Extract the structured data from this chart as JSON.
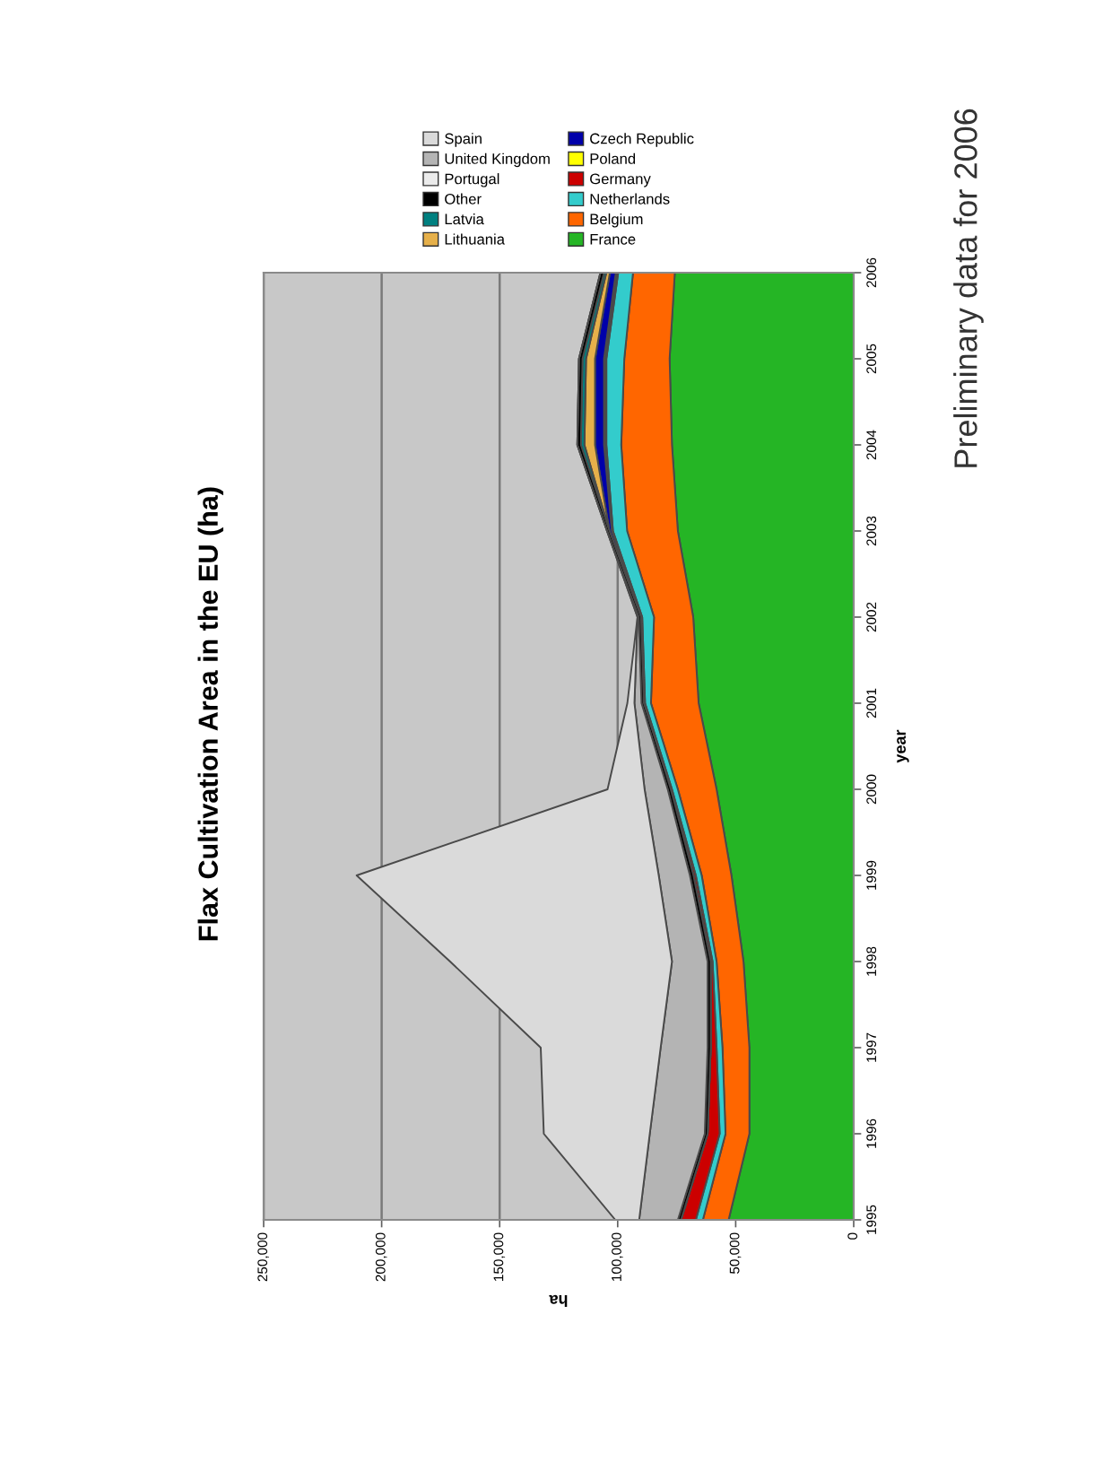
{
  "chart_data": {
    "type": "area",
    "stacked": true,
    "orientation": "horizontal",
    "title": "Flax Cultivation Area in the EU (ha)",
    "xlabel": "ha",
    "ylabel": "year",
    "x": [
      1995,
      1996,
      1997,
      1998,
      1999,
      2000,
      2001,
      2002,
      2003,
      2004,
      2005,
      2006
    ],
    "xlim": [
      250000,
      0
    ],
    "xticks": [
      {
        "value": 250000,
        "label": "250,000"
      },
      {
        "value": 200000,
        "label": "200,000"
      },
      {
        "value": 150000,
        "label": "150,000"
      },
      {
        "value": 100000,
        "label": "100,000"
      },
      {
        "value": 50000,
        "label": "50,000"
      },
      0
    ],
    "ylim": [
      1995,
      2006
    ],
    "yticks": [
      1995,
      1996,
      1997,
      1998,
      1999,
      2000,
      2001,
      2002,
      2003,
      2004,
      2005,
      2006
    ],
    "grid": "x",
    "legend": "top",
    "series": [
      {
        "name": "France",
        "color": "#25b525",
        "values": [
          53000,
          44200,
          44200,
          46700,
          51800,
          58100,
          65700,
          68000,
          74500,
          77000,
          78000,
          75800
        ]
      },
      {
        "name": "Belgium",
        "color": "#ff6600",
        "values": [
          10900,
          10100,
          11400,
          11400,
          12600,
          16400,
          20200,
          16600,
          21500,
          21500,
          19200,
          17700
        ]
      },
      {
        "name": "Netherlands",
        "color": "#33cccc",
        "values": [
          3000,
          2500,
          2500,
          1700,
          2500,
          2500,
          2500,
          5000,
          6000,
          6300,
          7600,
          6300
        ]
      },
      {
        "name": "Germany",
        "color": "#cc0000",
        "values": [
          6300,
          5100,
          2500,
          800,
          1000,
          500,
          500,
          500,
          500,
          500,
          500,
          500
        ]
      },
      {
        "name": "Poland",
        "color": "#ffff00",
        "values": [
          0,
          0,
          0,
          0,
          0,
          0,
          0,
          0,
          0,
          500,
          500,
          500
        ]
      },
      {
        "name": "Czech Republic",
        "color": "#0000aa",
        "values": [
          0,
          0,
          0,
          0,
          0,
          0,
          0,
          0,
          1000,
          3800,
          3800,
          2500
        ]
      },
      {
        "name": "Lithuania",
        "color": "#e6b04a",
        "values": [
          0,
          0,
          0,
          0,
          0,
          0,
          0,
          0,
          0,
          4500,
          3800,
          1500
        ]
      },
      {
        "name": "Latvia",
        "color": "#008080",
        "values": [
          0,
          0,
          0,
          0,
          0,
          0,
          0,
          0,
          0,
          1500,
          1500,
          1000
        ]
      },
      {
        "name": "Other",
        "color": "#000000",
        "values": [
          1300,
          1200,
          1300,
          1300,
          1500,
          1300,
          1000,
          1000,
          1000,
          1500,
          1500,
          1500
        ]
      },
      {
        "name": "Portugal",
        "color": "#ebebeb",
        "values": [
          null,
          null,
          null,
          null,
          null,
          null,
          null,
          null,
          null,
          null,
          null,
          null
        ]
      },
      {
        "name": "United Kingdom",
        "color": "#b4b4b4",
        "values": [
          16400,
          23300,
          19900,
          15100,
          13200,
          9800,
          3000,
          500,
          0,
          0,
          0,
          0
        ]
      },
      {
        "name": "Spain",
        "color": "#dadada",
        "values": [
          10100,
          44900,
          50800,
          94000,
          128000,
          15700,
          3000,
          0,
          0,
          0,
          0,
          0
        ]
      }
    ],
    "annotations": [
      "Preliminary data for 2006"
    ]
  }
}
